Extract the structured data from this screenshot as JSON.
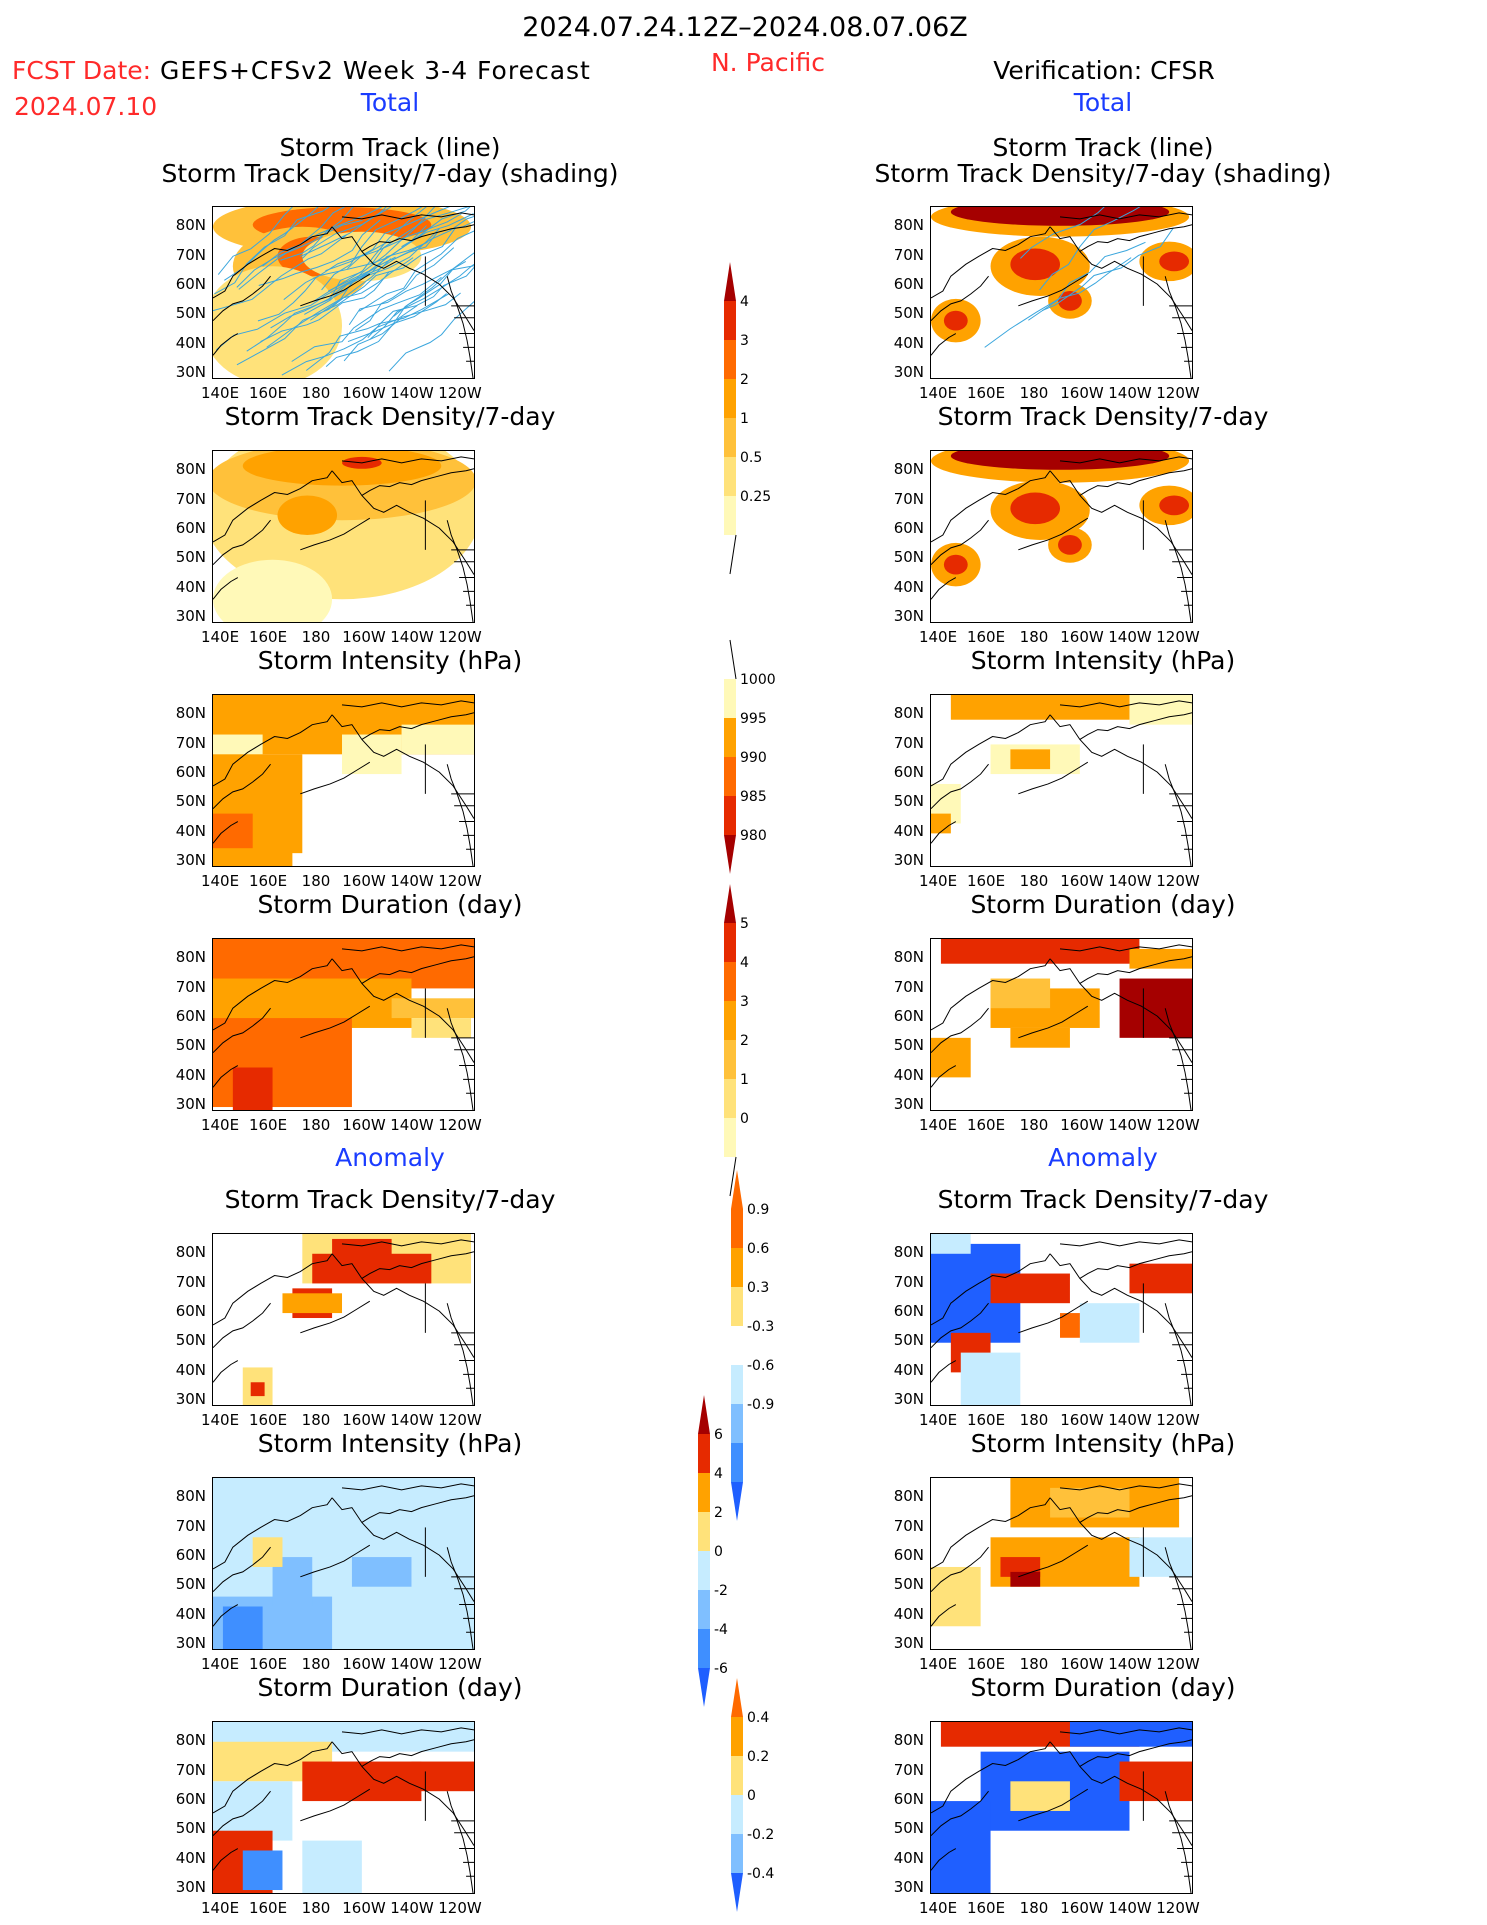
{
  "header": {
    "date_range": "2024.07.24.12Z–2024.08.07.06Z",
    "fcst_label": "FCST Date:",
    "forecast_title": "GEFS+CFSv2 Week 3-4 Forecast",
    "fcst_date": "2024.07.10",
    "region": "N. Pacific",
    "verification": "Verification: CFSR"
  },
  "sections": {
    "total": "Total",
    "anomaly": "Anomaly"
  },
  "panel_titles": {
    "track_line": "Storm Track (line)",
    "track_shading": "Storm Track Density/7-day (shading)",
    "density": "Storm Track Density/7-day",
    "intensity": "Storm Intensity (hPa)",
    "duration": "Storm Duration (day)"
  },
  "axes": {
    "lat_labels": [
      "80N",
      "70N",
      "60N",
      "50N",
      "40N",
      "30N"
    ],
    "lon_labels": [
      "140E",
      "160E",
      "180",
      "160W",
      "140W",
      "120W"
    ]
  },
  "colorbars": {
    "density_total": [
      "4",
      "3",
      "2",
      "1",
      "0.5",
      "0.25"
    ],
    "intensity_total": [
      "1000",
      "995",
      "990",
      "985",
      "980"
    ],
    "duration_total": [
      "5",
      "4",
      "3",
      "2",
      "1",
      "0"
    ],
    "density_anom": [
      "0.9",
      "0.6",
      "0.3",
      "-0.3",
      "-0.6",
      "-0.9"
    ],
    "intensity_anom": [
      "6",
      "4",
      "2",
      "0",
      "-2",
      "-4",
      "-6"
    ],
    "duration_anom": [
      "0.4",
      "0.2",
      "0",
      "-0.2",
      "-0.4"
    ]
  },
  "colors": {
    "yellow_light": "#fff9b8",
    "yellow": "#ffe27a",
    "orange_light": "#ffc13a",
    "orange": "#ffa200",
    "orange_dark": "#ff6a00",
    "red": "#e62a00",
    "dark_red": "#a50000",
    "blue_light": "#c6ecff",
    "blue": "#7fbfff",
    "blue_mid": "#3f8fff",
    "blue_dark": "#1f5fff",
    "track_line": "#3aa6dd"
  }
}
